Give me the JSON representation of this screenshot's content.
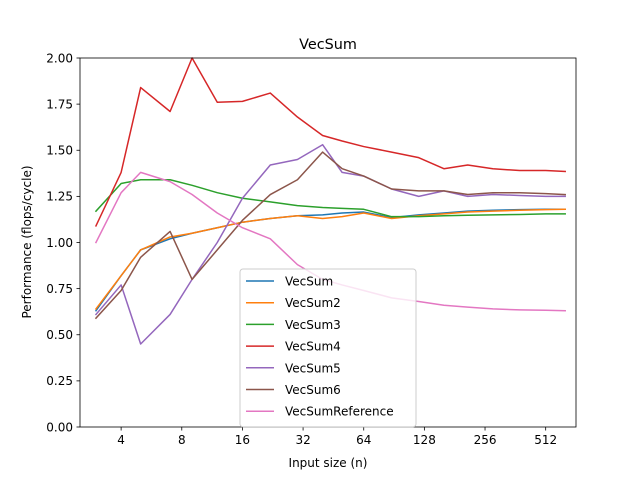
{
  "chart_data": {
    "type": "line",
    "title": "VecSum",
    "xlabel": "Input size (n)",
    "ylabel": "Performance (flops/cycle)",
    "x_scale": "log2",
    "x_ticks": [
      4,
      8,
      16,
      32,
      64,
      128,
      256,
      512
    ],
    "x_tick_labels": [
      "4",
      "8",
      "16",
      "32",
      "64",
      "128",
      "256",
      "512"
    ],
    "xlim": [
      2.5,
      724
    ],
    "ylim": [
      0,
      2.0
    ],
    "y_ticks": [
      0.0,
      0.25,
      0.5,
      0.75,
      1.0,
      1.25,
      1.5,
      1.75,
      2.0
    ],
    "y_tick_labels": [
      "0.00",
      "0.25",
      "0.50",
      "0.75",
      "1.00",
      "1.25",
      "1.50",
      "1.75",
      "2.00"
    ],
    "grid": false,
    "legend_position": "lower-center",
    "x": [
      3,
      4,
      5,
      7,
      9,
      12,
      16,
      22,
      30,
      40,
      50,
      64,
      88,
      120,
      160,
      210,
      280,
      380,
      512,
      640
    ],
    "series": [
      {
        "name": "VecSum",
        "color": "#1f77b4",
        "values": [
          0.63,
          0.82,
          0.96,
          1.02,
          1.05,
          1.08,
          1.11,
          1.13,
          1.145,
          1.15,
          1.16,
          1.165,
          1.135,
          1.15,
          1.16,
          1.17,
          1.175,
          1.178,
          1.18,
          1.18
        ]
      },
      {
        "name": "VecSum2",
        "color": "#ff7f0e",
        "values": [
          0.64,
          0.82,
          0.96,
          1.03,
          1.05,
          1.08,
          1.11,
          1.13,
          1.145,
          1.13,
          1.14,
          1.16,
          1.13,
          1.145,
          1.155,
          1.165,
          1.17,
          1.175,
          1.178,
          1.18
        ]
      },
      {
        "name": "VecSum3",
        "color": "#2ca02c",
        "values": [
          1.17,
          1.32,
          1.34,
          1.34,
          1.31,
          1.27,
          1.24,
          1.22,
          1.2,
          1.19,
          1.185,
          1.18,
          1.14,
          1.14,
          1.145,
          1.148,
          1.15,
          1.152,
          1.155,
          1.155
        ]
      },
      {
        "name": "VecSum4",
        "color": "#d62728",
        "values": [
          1.09,
          1.38,
          1.84,
          1.71,
          2.0,
          1.76,
          1.765,
          1.81,
          1.68,
          1.58,
          1.55,
          1.52,
          1.49,
          1.46,
          1.4,
          1.42,
          1.4,
          1.39,
          1.39,
          1.385
        ]
      },
      {
        "name": "VecSum5",
        "color": "#9467bd",
        "values": [
          0.61,
          0.77,
          0.45,
          0.61,
          0.8,
          1.0,
          1.24,
          1.42,
          1.45,
          1.53,
          1.38,
          1.36,
          1.29,
          1.25,
          1.28,
          1.25,
          1.26,
          1.255,
          1.25,
          1.25
        ]
      },
      {
        "name": "VecSum6",
        "color": "#8c564b",
        "values": [
          0.59,
          0.74,
          0.92,
          1.06,
          0.8,
          0.96,
          1.12,
          1.26,
          1.34,
          1.49,
          1.4,
          1.36,
          1.29,
          1.28,
          1.28,
          1.26,
          1.27,
          1.27,
          1.265,
          1.26
        ]
      },
      {
        "name": "VecSumReference",
        "color": "#e377c2",
        "values": [
          1.0,
          1.27,
          1.38,
          1.33,
          1.26,
          1.16,
          1.08,
          1.02,
          0.88,
          0.8,
          0.77,
          0.74,
          0.7,
          0.68,
          0.66,
          0.65,
          0.64,
          0.635,
          0.633,
          0.63
        ]
      }
    ]
  }
}
